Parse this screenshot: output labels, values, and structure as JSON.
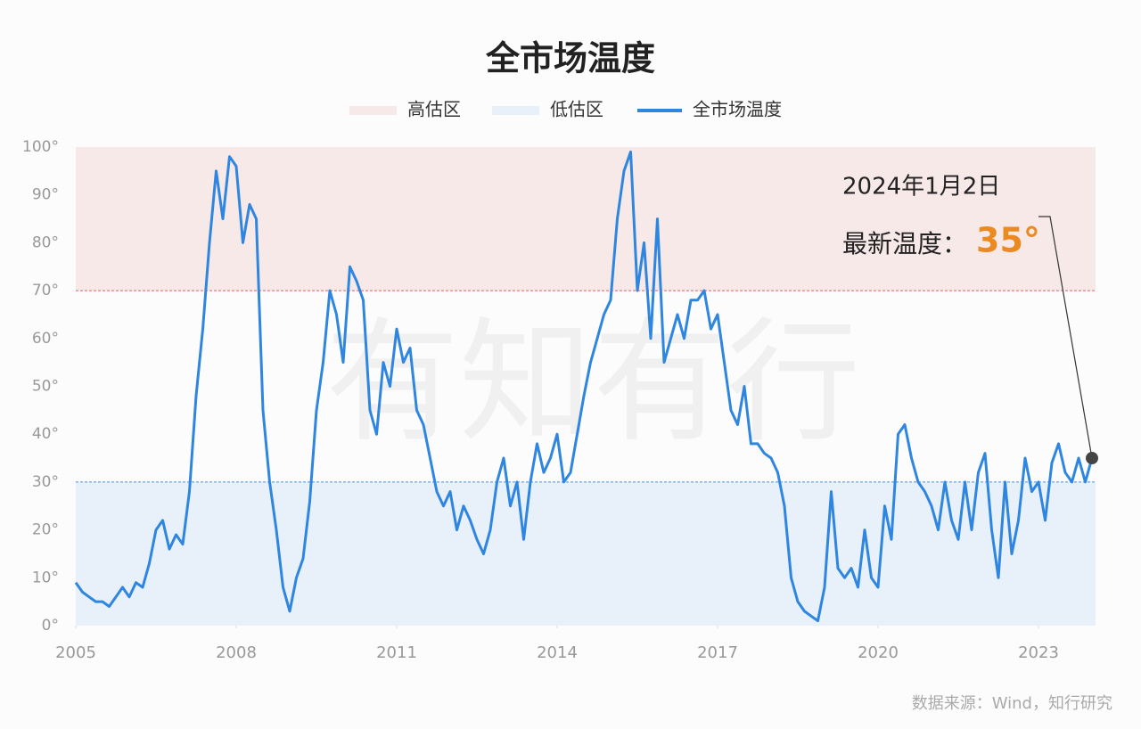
{
  "chart_data": {
    "type": "line",
    "title": "全市场温度",
    "legend": [
      "高估区",
      "低估区"
    ],
    "series": [
      {
        "name": "全市场温度",
        "color": "#2f86e0",
        "values": [
          9,
          7,
          6,
          5,
          5,
          4,
          6,
          8,
          6,
          9,
          8,
          13,
          20,
          22,
          16,
          19,
          17,
          28,
          48,
          62,
          80,
          95,
          85,
          98,
          96,
          80,
          88,
          85,
          45,
          30,
          20,
          8,
          3,
          10,
          14,
          26,
          45,
          55,
          70,
          65,
          55,
          75,
          72,
          68,
          45,
          40,
          55,
          50,
          62,
          55,
          58,
          45,
          42,
          35,
          28,
          25,
          28,
          20,
          25,
          22,
          18,
          15,
          20,
          30,
          35,
          25,
          30,
          18,
          30,
          38,
          32,
          35,
          40,
          30,
          32,
          40,
          48,
          55,
          60,
          65,
          68,
          85,
          95,
          99,
          70,
          80,
          60,
          85,
          55,
          60,
          65,
          60,
          68,
          68,
          70,
          62,
          65,
          55,
          45,
          42,
          50,
          38,
          38,
          36,
          35,
          32,
          25,
          10,
          5,
          3,
          2,
          1,
          8,
          28,
          12,
          10,
          12,
          8,
          20,
          10,
          8,
          25,
          18,
          40,
          42,
          35,
          30,
          28,
          25,
          20,
          30,
          22,
          18,
          30,
          20,
          32,
          36,
          20,
          10,
          30,
          15,
          22,
          35,
          28,
          30,
          22,
          34,
          38,
          32,
          30,
          35,
          30,
          35
        ]
      }
    ],
    "x": [
      2005,
      2005.125,
      2005.25,
      2005.375,
      2005.5,
      2005.625,
      2005.75,
      2005.875,
      2006,
      2006.125,
      2006.25,
      2006.375,
      2006.5,
      2006.625,
      2006.75,
      2006.875,
      2007,
      2007.125,
      2007.25,
      2007.375,
      2007.5,
      2007.625,
      2007.75,
      2007.875,
      2008,
      2008.125,
      2008.25,
      2008.375,
      2008.5,
      2008.625,
      2008.75,
      2008.875,
      2009,
      2009.125,
      2009.25,
      2009.375,
      2009.5,
      2009.625,
      2009.75,
      2009.875,
      2010,
      2010.125,
      2010.25,
      2010.375,
      2010.5,
      2010.625,
      2010.75,
      2010.875,
      2011,
      2011.125,
      2011.25,
      2011.375,
      2011.5,
      2011.625,
      2011.75,
      2011.875,
      2012,
      2012.125,
      2012.25,
      2012.375,
      2012.5,
      2012.625,
      2012.75,
      2012.875,
      2013,
      2013.125,
      2013.25,
      2013.375,
      2013.5,
      2013.625,
      2013.75,
      2013.875,
      2014,
      2014.125,
      2014.25,
      2014.375,
      2014.5,
      2014.625,
      2014.75,
      2014.875,
      2015,
      2015.125,
      2015.25,
      2015.375,
      2015.5,
      2015.625,
      2015.75,
      2015.875,
      2016,
      2016.125,
      2016.25,
      2016.375,
      2016.5,
      2016.625,
      2016.75,
      2016.875,
      2017,
      2017.125,
      2017.25,
      2017.375,
      2017.5,
      2017.625,
      2017.75,
      2017.875,
      2018,
      2018.125,
      2018.25,
      2018.375,
      2018.5,
      2018.625,
      2018.75,
      2018.875,
      2019,
      2019.125,
      2019.25,
      2019.375,
      2019.5,
      2019.625,
      2019.75,
      2019.875,
      2020,
      2020.125,
      2020.25,
      2020.375,
      2020.5,
      2020.625,
      2020.75,
      2020.875,
      2021,
      2021.125,
      2021.25,
      2021.375,
      2021.5,
      2021.625,
      2021.75,
      2021.875,
      2022,
      2022.125,
      2022.25,
      2022.375,
      2022.5,
      2022.625,
      2022.75,
      2022.875,
      2023,
      2023.125,
      2023.25,
      2023.375,
      2023.5,
      2023.625,
      2023.75,
      2023.875,
      2024
    ],
    "xlim": [
      2005,
      2024
    ],
    "xticks": [
      2005,
      2008,
      2011,
      2014,
      2017,
      2020,
      2023
    ],
    "ylim": [
      0,
      100
    ],
    "yticks": [
      {
        "value": 0,
        "label": "0°"
      },
      {
        "value": 10,
        "label": "10°"
      },
      {
        "value": 20,
        "label": "20°"
      },
      {
        "value": 30,
        "label": "30°"
      },
      {
        "value": 40,
        "label": "40°"
      },
      {
        "value": 50,
        "label": "50°"
      },
      {
        "value": 60,
        "label": "60°"
      },
      {
        "value": 70,
        "label": "70°"
      },
      {
        "value": 80,
        "label": "80°"
      },
      {
        "value": 90,
        "label": "90°"
      },
      {
        "value": 100,
        "label": "100°"
      }
    ],
    "high_zone": [
      70,
      100
    ],
    "low_zone": [
      0,
      30
    ],
    "high_color": "#f8e9e9",
    "low_color": "#e8f0fa",
    "annotations": [
      "2024年1月2日",
      "最新温度：",
      "35°"
    ],
    "watermark": "有知有行",
    "source": "数据来源：Wind，知行研究"
  }
}
